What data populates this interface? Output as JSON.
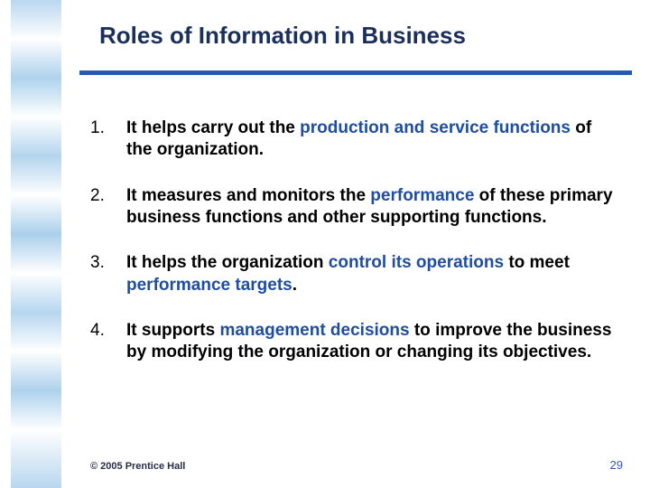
{
  "title": "Roles of Information in Business",
  "colors": {
    "title_text": "#1a2f5a",
    "rule": "#255baf",
    "accent": "#1f4ea0",
    "body_text": "#000000",
    "footer_text": "#2a2a4a",
    "page_number": "#3a5aa8",
    "sidebar_gradient": [
      "#b5d5ee",
      "#ffffff",
      "#aad0ec",
      "#ffffff",
      "#b0d3ed",
      "#ffffff",
      "#a6cdea",
      "#ffffff",
      "#b2d4ee",
      "#ffffff",
      "#a9cfeb",
      "#ffffff",
      "#b4d4ed"
    ]
  },
  "typography": {
    "title_fontsize": 26,
    "body_fontsize": 19,
    "footer_fontsize": 11,
    "font_family": "Verdana"
  },
  "list": [
    {
      "num": "1.",
      "prefix_bold": "It helps carry out the ",
      "accent": "production and service functions",
      "suffix_bold": " of the organization."
    },
    {
      "num": "2.",
      "prefix_bold": "It measures and monitors the ",
      "accent": "performance",
      "suffix_bold": " of these primary business functions and other supporting functions."
    },
    {
      "num": "3.",
      "prefix_bold": "It helps the organization ",
      "accent": "control its operations",
      "mid_bold": " to meet ",
      "accent2": "performance targets",
      "suffix_bold": "."
    },
    {
      "num": "4.",
      "prefix_bold": "It supports ",
      "accent": "management decisions",
      "suffix_bold": " to improve the business by modifying the organization or changing its objectives."
    }
  ],
  "footer": {
    "copyright": "© 2005  Prentice Hall",
    "page": "29"
  }
}
